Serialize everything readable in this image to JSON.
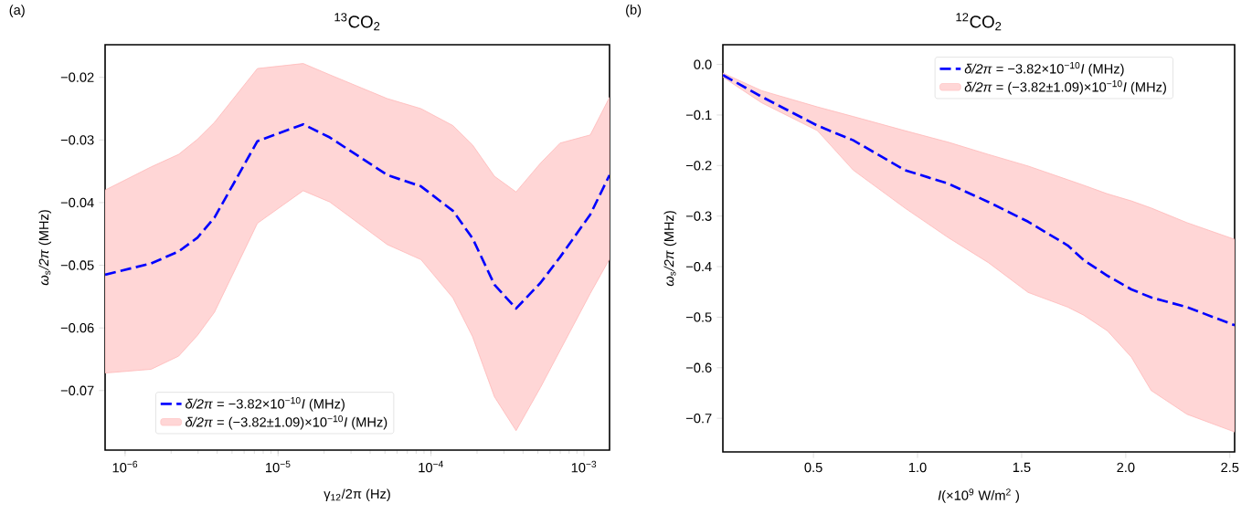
{
  "chart_data": [
    {
      "type": "line",
      "title": "$^{13}$CO$_{2}$",
      "xlabel": "γ$_{12}$/2π (Hz)",
      "ylabel": "*ω*$_{s}$*/2π* (MHz)",
      "annotations": [
        "(a)",
        "*δ/2π* = (−3.82±1.09)×10$^{−10}$*I* (MHz)"
      ],
      "log": "x",
      "legend": "bottom left",
      "xlim": [
        7.4e-07,
        0.00147
      ],
      "ylim": [
        -0.0795,
        -0.0148
      ],
      "xticks": [
        {
          "value": 1e-06,
          "label": "10$^{−6}$"
        },
        {
          "value": 1e-05,
          "label": "10$^{−5}$"
        },
        {
          "value": 0.0001,
          "label": "10$^{−4}$"
        },
        {
          "value": 0.001,
          "label": "10$^{−3}$"
        }
      ],
      "yticks": [
        {
          "value": -0.07,
          "label": "−0.07"
        },
        {
          "value": -0.06,
          "label": "−0.06"
        },
        {
          "value": -0.05,
          "label": "−0.05"
        },
        {
          "value": -0.04,
          "label": "−0.04"
        },
        {
          "value": -0.03,
          "label": "−0.03"
        },
        {
          "value": -0.02,
          "label": "−0.02"
        }
      ],
      "x": [
        7.4e-07,
        1.48e-06,
        2.24e-06,
        2.97e-06,
        3.84e-06,
        7.33e-06,
        1.46e-05,
        2.18e-05,
        5.18e-05,
        8.6e-05,
        0.000139,
        0.000187,
        0.00026,
        0.00036,
        0.00052,
        0.000698,
        0.0011,
        0.00147
      ],
      "series": [
        {
          "type": "line",
          "name": "*δ/2π* = −3.82×10$^{−10}$*I* (MHz)",
          "color": "#0000ff",
          "line_style": "dashed",
          "values": [
            -0.0515,
            -0.0497,
            -0.0478,
            -0.0456,
            -0.0424,
            -0.0302,
            -0.0275,
            -0.0296,
            -0.0356,
            -0.0374,
            -0.0413,
            -0.0457,
            -0.0531,
            -0.0569,
            -0.0528,
            -0.0487,
            -0.0419,
            -0.0356
          ],
          "upper": [
            -0.038,
            -0.0343,
            -0.0323,
            -0.0299,
            -0.0272,
            -0.0186,
            -0.0178,
            -0.0196,
            -0.0234,
            -0.025,
            -0.0277,
            -0.0308,
            -0.0358,
            -0.0383,
            -0.0337,
            -0.0305,
            -0.0292,
            -0.0232
          ],
          "lower": [
            -0.0672,
            -0.0666,
            -0.0645,
            -0.0612,
            -0.0575,
            -0.0433,
            -0.0381,
            -0.0399,
            -0.0467,
            -0.0491,
            -0.0552,
            -0.0614,
            -0.071,
            -0.0764,
            -0.0695,
            -0.0636,
            -0.0545,
            -0.049
          ]
        }
      ]
    },
    {
      "type": "line",
      "title": "$^{12}$CO$_{2}$",
      "xlabel": "*I*(×10$^{9}$  W/m$^{2}$ )",
      "ylabel": "*ω*$_{s}$*/2π* (MHz)",
      "annotations": [
        "(b)",
        "*δ/2π* = (−3.82±1.09)×10$^{−10}$*I* (MHz)"
      ],
      "legend": "top right",
      "xlim": [
        0.065,
        2.523
      ],
      "ylim": [
        -0.7665,
        0.039
      ],
      "xticks": [
        0.5,
        {
          "value": 1.0,
          "label": "1.0"
        },
        1.5,
        {
          "value": 2.0,
          "label": "2.0"
        },
        2.5
      ],
      "yticks": [
        {
          "value": -0.7,
          "label": "−0.7"
        },
        {
          "value": -0.6,
          "label": "−0.6"
        },
        {
          "value": -0.5,
          "label": "−0.5"
        },
        {
          "value": -0.4,
          "label": "−0.4"
        },
        {
          "value": -0.3,
          "label": "−0.3"
        },
        {
          "value": -0.2,
          "label": "−0.2"
        },
        {
          "value": -0.1,
          "label": "−0.1"
        },
        {
          "value": 0,
          "label": "0.0"
        }
      ],
      "x": [
        0.065,
        0.252,
        0.519,
        0.691,
        0.939,
        1.149,
        1.34,
        1.531,
        1.721,
        1.798,
        1.912,
        2.027,
        2.122,
        2.294,
        2.523
      ],
      "series": [
        {
          "type": "line",
          "name": "*δ/2π* = −3.82×10$^{−10}$*I* (MHz)",
          "color": "#0000ff",
          "line_style": "dashed",
          "values": [
            -0.021,
            -0.064,
            -0.121,
            -0.15,
            -0.209,
            -0.236,
            -0.272,
            -0.311,
            -0.358,
            -0.387,
            -0.418,
            -0.445,
            -0.461,
            -0.48,
            -0.516
          ],
          "upper": [
            -0.017,
            -0.052,
            -0.084,
            -0.103,
            -0.131,
            -0.154,
            -0.178,
            -0.201,
            -0.228,
            -0.239,
            -0.256,
            -0.27,
            -0.284,
            -0.313,
            -0.346
          ],
          "lower": [
            -0.025,
            -0.076,
            -0.131,
            -0.209,
            -0.284,
            -0.343,
            -0.392,
            -0.451,
            -0.48,
            -0.496,
            -0.527,
            -0.579,
            -0.645,
            -0.692,
            -0.727
          ]
        }
      ]
    }
  ]
}
